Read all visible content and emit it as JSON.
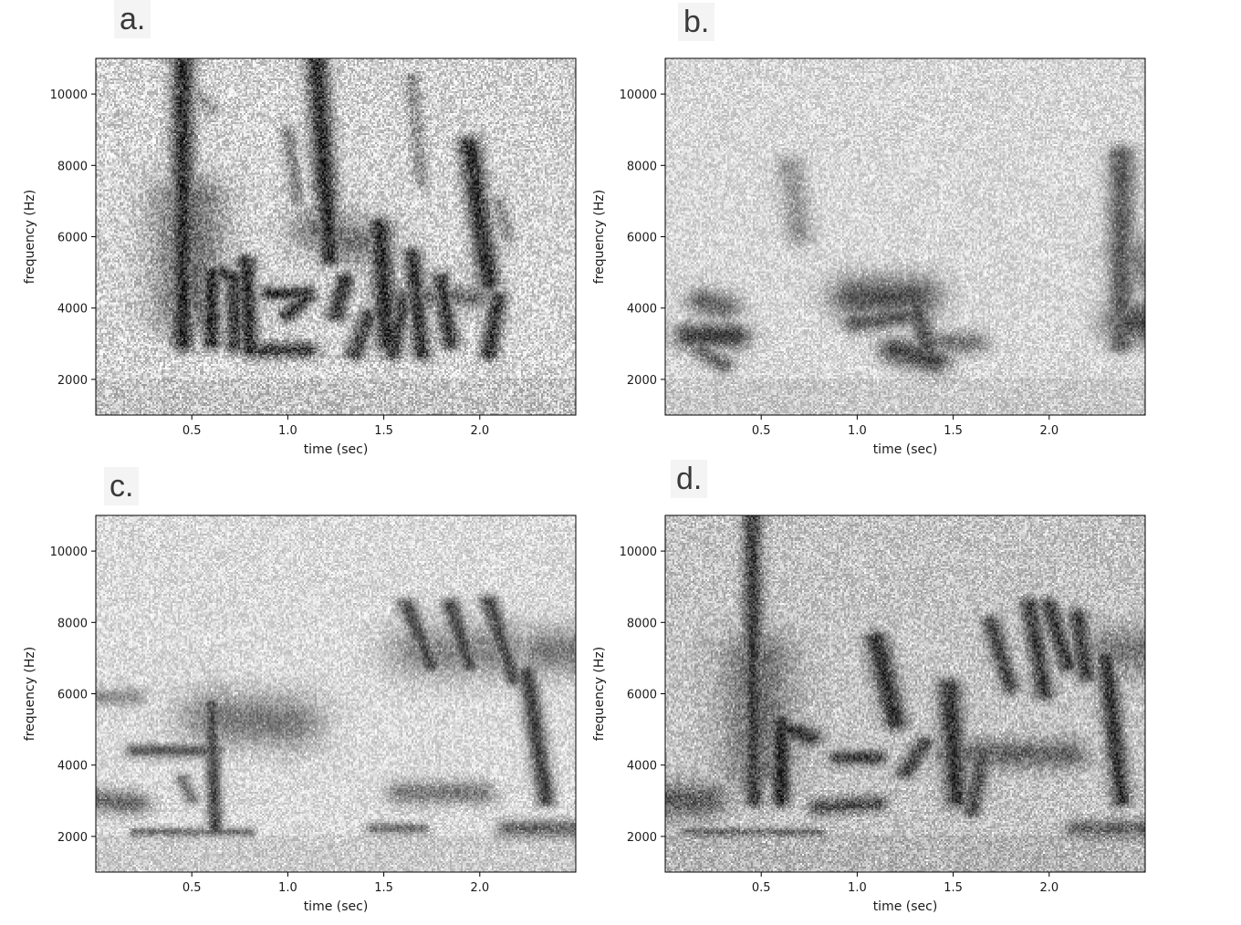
{
  "chart_data": [
    {
      "type": "heatmap",
      "panel_label": "a.",
      "xlabel": "time (sec)",
      "ylabel": "frequency (Hz)",
      "xlim": [
        0,
        2.5
      ],
      "ylim": [
        1000,
        11000
      ],
      "xticks": [
        0.5,
        1.0,
        1.5,
        2.0
      ],
      "yticks": [
        2000,
        4000,
        6000,
        8000,
        10000
      ],
      "colormap": "grayscale (dark = high energy)",
      "background": "#d2d2d2",
      "noise": 0.18
    },
    {
      "type": "heatmap",
      "panel_label": "b.",
      "xlabel": "time (sec)",
      "ylabel": "frequency (Hz)",
      "xlim": [
        0,
        2.5
      ],
      "ylim": [
        1000,
        11000
      ],
      "xticks": [
        0.5,
        1.0,
        1.5,
        2.0
      ],
      "yticks": [
        2000,
        4000,
        6000,
        8000,
        10000
      ],
      "colormap": "grayscale (dark = high energy)",
      "background": "#d6d6d6",
      "noise": 0.12
    },
    {
      "type": "heatmap",
      "panel_label": "c.",
      "xlabel": "time (sec)",
      "ylabel": "frequency (Hz)",
      "xlim": [
        0,
        2.5
      ],
      "ylim": [
        1000,
        11000
      ],
      "xticks": [
        0.5,
        1.0,
        1.5,
        2.0
      ],
      "yticks": [
        2000,
        4000,
        6000,
        8000,
        10000
      ],
      "colormap": "grayscale (dark = high energy)",
      "background": "#d8d8d8",
      "noise": 0.12
    },
    {
      "type": "heatmap",
      "panel_label": "d.",
      "xlabel": "time (sec)",
      "ylabel": "frequency (Hz)",
      "xlim": [
        0,
        2.5
      ],
      "ylim": [
        1000,
        11000
      ],
      "xticks": [
        0.5,
        1.0,
        1.5,
        2.0
      ],
      "yticks": [
        2000,
        4000,
        6000,
        8000,
        10000
      ],
      "colormap": "grayscale (dark = high energy)",
      "background": "#c2c2c2",
      "noise": 0.15
    }
  ]
}
